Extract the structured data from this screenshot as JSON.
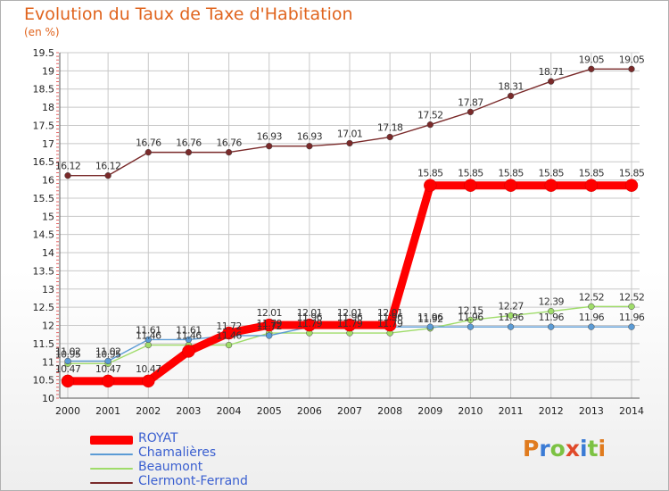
{
  "header": {
    "title": "Evolution du Taux de Taxe d'Habitation",
    "unit": "(en %)"
  },
  "brand": {
    "letters": [
      "P",
      "r",
      "o",
      "x",
      "i",
      "t",
      "i"
    ],
    "colors": [
      "#e07b1e",
      "#3a7bd5",
      "#7cc243",
      "#e04a2a",
      "#3a7bd5",
      "#7cc243",
      "#e07b1e"
    ]
  },
  "chart_data": {
    "type": "line",
    "title": "Evolution du Taux de Taxe d'Habitation",
    "ylabel": "(en %)",
    "x": [
      2000,
      2001,
      2002,
      2003,
      2004,
      2005,
      2006,
      2007,
      2008,
      2009,
      2010,
      2011,
      2012,
      2013,
      2014
    ],
    "ylim": [
      10,
      19.5
    ],
    "yticks": [
      "10",
      "10.5",
      "11",
      "11.5",
      "12",
      "12.5",
      "13",
      "13.5",
      "14",
      "14.5",
      "15",
      "15.5",
      "16",
      "16.5",
      "17",
      "17.5",
      "18",
      "18.5",
      "19",
      "19.5"
    ],
    "grid": true,
    "legend_position": "bottom-left",
    "series": [
      {
        "name": "Clermont-Ferrand",
        "color": "#7a2a2a",
        "values": [
          16.12,
          16.12,
          16.76,
          16.76,
          16.76,
          16.93,
          16.93,
          17.01,
          17.18,
          17.52,
          17.87,
          18.31,
          18.71,
          19.05,
          19.05
        ],
        "labels": [
          "16.12",
          "16.12",
          "16.76",
          "16.76",
          "16.76",
          "16.93",
          "16.93",
          "17.01",
          "17.18",
          "17.52",
          "17.87",
          "18.31",
          "18.71",
          "19.05",
          "19.05"
        ]
      },
      {
        "name": "Beaumont",
        "color": "#9fdc6a",
        "values": [
          10.95,
          10.95,
          11.46,
          11.46,
          11.46,
          11.79,
          11.79,
          11.79,
          11.79,
          11.92,
          12.15,
          12.27,
          12.39,
          12.52,
          12.52
        ],
        "labels": [
          "10.95",
          "10.95",
          "11.46",
          "11.46",
          "11.46",
          "11.79",
          "11.79",
          "11.79",
          "11.79",
          "11.92",
          "12.15",
          "12.27",
          "12.39",
          "12.52",
          "12.52"
        ]
      },
      {
        "name": "Chamalières",
        "color": "#5b9bd5",
        "values": [
          11.02,
          11.02,
          11.61,
          11.61,
          11.72,
          11.72,
          11.96,
          11.96,
          11.96,
          11.96,
          11.96,
          11.96,
          11.96,
          11.96,
          11.96
        ],
        "labels": [
          "11.02",
          "11.02",
          "11.61",
          "11.61",
          "11.72",
          "11.72",
          "11.96",
          "11.96",
          "11.96",
          "11.96",
          "11.96",
          "11.96",
          "11.96",
          "11.96",
          "11.96"
        ]
      },
      {
        "name": "ROYAT",
        "color": "#ff0000",
        "values": [
          10.47,
          10.47,
          10.47,
          11.29,
          11.79,
          12.01,
          12.01,
          12.01,
          12.01,
          15.85,
          15.85,
          15.85,
          15.85,
          15.85,
          15.85
        ],
        "labels": [
          "10.47",
          "10.47",
          "10.47",
          "",
          "",
          "12.01",
          "12.01",
          "12.01",
          "12.01",
          "15.85",
          "15.85",
          "15.85",
          "15.85",
          "15.85",
          "15.85"
        ]
      }
    ],
    "legend": [
      "ROYAT",
      "Chamalières",
      "Beaumont",
      "Clermont-Ferrand"
    ]
  }
}
